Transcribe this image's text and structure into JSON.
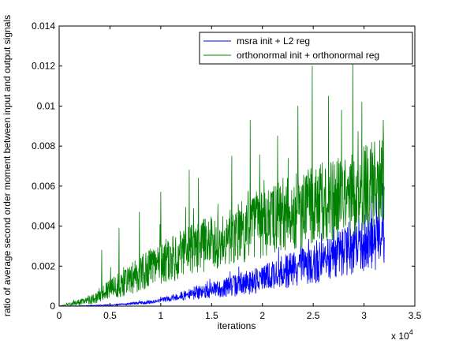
{
  "chart_data": {
    "type": "line",
    "xlabel": "iterations",
    "ylabel": "ratio of average second order moment between input and output signals",
    "x_multiplier_label": "x 10",
    "x_multiplier_exponent": "4",
    "xlim": [
      0,
      35000
    ],
    "ylim": [
      0,
      0.014
    ],
    "x_ticks": [
      0,
      5000,
      10000,
      15000,
      20000,
      25000,
      30000,
      35000
    ],
    "x_tick_labels": [
      "0",
      "0.5",
      "1",
      "1.5",
      "2",
      "2.5",
      "3",
      "3.5"
    ],
    "y_ticks": [
      0,
      0.002,
      0.004,
      0.006,
      0.008,
      0.01,
      0.012,
      0.014
    ],
    "y_tick_labels": [
      "0",
      "0.002",
      "0.004",
      "0.006",
      "0.008",
      "0.01",
      "0.012",
      "0.014"
    ],
    "grid": false,
    "legend_position": "top-right",
    "x_sample_range": [
      0,
      32000
    ],
    "series": [
      {
        "name": "msra init + L2 reg",
        "color": "#0000ff",
        "trend": [
          [
            0,
            0
          ],
          [
            3000,
            2e-05
          ],
          [
            6000,
            8e-05
          ],
          [
            9000,
            0.0002
          ],
          [
            12000,
            0.0005
          ],
          [
            15000,
            0.0008
          ],
          [
            18000,
            0.0011
          ],
          [
            20000,
            0.0014
          ],
          [
            22000,
            0.0017
          ],
          [
            25000,
            0.0021
          ],
          [
            28000,
            0.0027
          ],
          [
            30000,
            0.003
          ],
          [
            32000,
            0.0033
          ]
        ],
        "spread": [
          [
            0,
            0
          ],
          [
            5000,
            3e-05
          ],
          [
            10000,
            0.0001
          ],
          [
            15000,
            0.0004
          ],
          [
            20000,
            0.0007
          ],
          [
            25000,
            0.001
          ],
          [
            30000,
            0.0013
          ],
          [
            32000,
            0.0015
          ]
        ],
        "spikes": [
          [
            30700,
            0.0055
          ],
          [
            31500,
            0.0052
          ],
          [
            29500,
            0.0045
          ],
          [
            31900,
            0.0048
          ],
          [
            28500,
            0.0042
          ],
          [
            27000,
            0.0038
          ]
        ]
      },
      {
        "name": "orthonormal init + orthonormal reg",
        "color": "#008000",
        "trend": [
          [
            0,
            0
          ],
          [
            3000,
            0.0003
          ],
          [
            5000,
            0.0008
          ],
          [
            7000,
            0.0014
          ],
          [
            9000,
            0.0019
          ],
          [
            11000,
            0.0023
          ],
          [
            13000,
            0.0028
          ],
          [
            15000,
            0.0032
          ],
          [
            17000,
            0.0036
          ],
          [
            19000,
            0.0039
          ],
          [
            21000,
            0.0043
          ],
          [
            23000,
            0.0047
          ],
          [
            25000,
            0.005
          ],
          [
            27000,
            0.0053
          ],
          [
            29000,
            0.0056
          ],
          [
            31000,
            0.0061
          ],
          [
            32000,
            0.0065
          ]
        ],
        "spread": [
          [
            0,
            0
          ],
          [
            3000,
            0.0002
          ],
          [
            6000,
            0.0007
          ],
          [
            10000,
            0.0011
          ],
          [
            15000,
            0.0014
          ],
          [
            20000,
            0.0017
          ],
          [
            25000,
            0.002
          ],
          [
            30000,
            0.0022
          ],
          [
            32000,
            0.0023
          ]
        ],
        "spikes": [
          [
            24900,
            0.012
          ],
          [
            28900,
            0.0122
          ],
          [
            23500,
            0.01
          ],
          [
            26500,
            0.0105
          ],
          [
            18800,
            0.0093
          ],
          [
            29800,
            0.0102
          ],
          [
            27800,
            0.0098
          ],
          [
            31900,
            0.0093
          ],
          [
            21500,
            0.0085
          ],
          [
            17000,
            0.0075
          ],
          [
            12800,
            0.0068
          ],
          [
            13700,
            0.0064
          ],
          [
            10000,
            0.0057
          ],
          [
            7900,
            0.0047
          ],
          [
            5900,
            0.0039
          ],
          [
            4200,
            0.0028
          ]
        ]
      }
    ]
  }
}
